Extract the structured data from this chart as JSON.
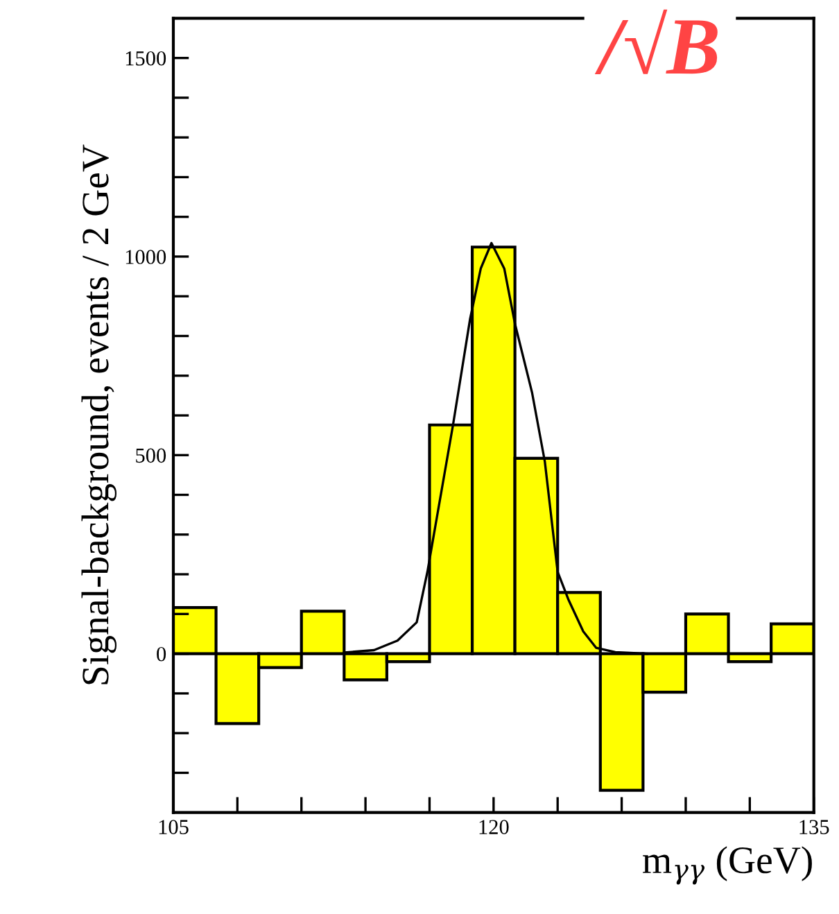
{
  "chart_data": {
    "type": "histogram",
    "xlabel": "m$_{γγ}$ (GeV)",
    "ylabel": "Signal-background, events / 2 GeV",
    "annotations": [
      "/√B"
    ],
    "bins": [
      105,
      107,
      109,
      111,
      113,
      115,
      117,
      119,
      121,
      123,
      125,
      127,
      129,
      131,
      133,
      135
    ],
    "series": [
      {
        "type": "histogram",
        "color": "#ffff00",
        "values": [
          116,
          -176,
          -35,
          107,
          -66,
          -20,
          576,
          1024,
          492,
          154,
          -344,
          -97,
          100,
          -20,
          75
        ]
      },
      {
        "type": "line",
        "color": "#000000",
        "x": [
          113.0,
          114.4,
          115.5,
          116.4,
          116.9,
          117.2,
          118.1,
          118.9,
          119.4,
          119.9,
          120.5,
          121.0,
          121.8,
          122.4,
          123.0,
          123.5,
          124.2,
          124.8,
          125.7,
          127.2
        ],
        "values": [
          3,
          9,
          33,
          79,
          206,
          299,
          576,
          843,
          970,
          1034,
          970,
          831,
          658,
          484,
          206,
          137,
          56,
          15,
          4,
          0
        ]
      }
    ],
    "xlim": [
      105,
      135
    ],
    "xticks": [
      105,
      {
        "value": 108,
        "label": null
      },
      {
        "value": 111,
        "label": null
      },
      {
        "value": 114,
        "label": null
      },
      {
        "value": 117,
        "label": null
      },
      120,
      {
        "value": 123,
        "label": null
      },
      {
        "value": 126,
        "label": null
      },
      {
        "value": 129,
        "label": null
      },
      {
        "value": 132,
        "label": null
      },
      135
    ],
    "ylim": [
      -400,
      1600
    ],
    "yticks": [
      {
        "value": -300,
        "label": null
      },
      {
        "value": -200,
        "label": null
      },
      {
        "value": -100,
        "label": null
      },
      0,
      {
        "value": 100,
        "label": null
      },
      {
        "value": 200,
        "label": null
      },
      {
        "value": 300,
        "label": null
      },
      {
        "value": 400,
        "label": null
      },
      500,
      {
        "value": 600,
        "label": null
      },
      {
        "value": 700,
        "label": null
      },
      {
        "value": 800,
        "label": null
      },
      {
        "value": 900,
        "label": null
      },
      1000,
      {
        "value": 1100,
        "label": null
      },
      {
        "value": 1200,
        "label": null
      },
      {
        "value": 1300,
        "label": null
      },
      {
        "value": 1400,
        "label": null
      },
      1500
    ],
    "grid": false,
    "legend": false
  }
}
